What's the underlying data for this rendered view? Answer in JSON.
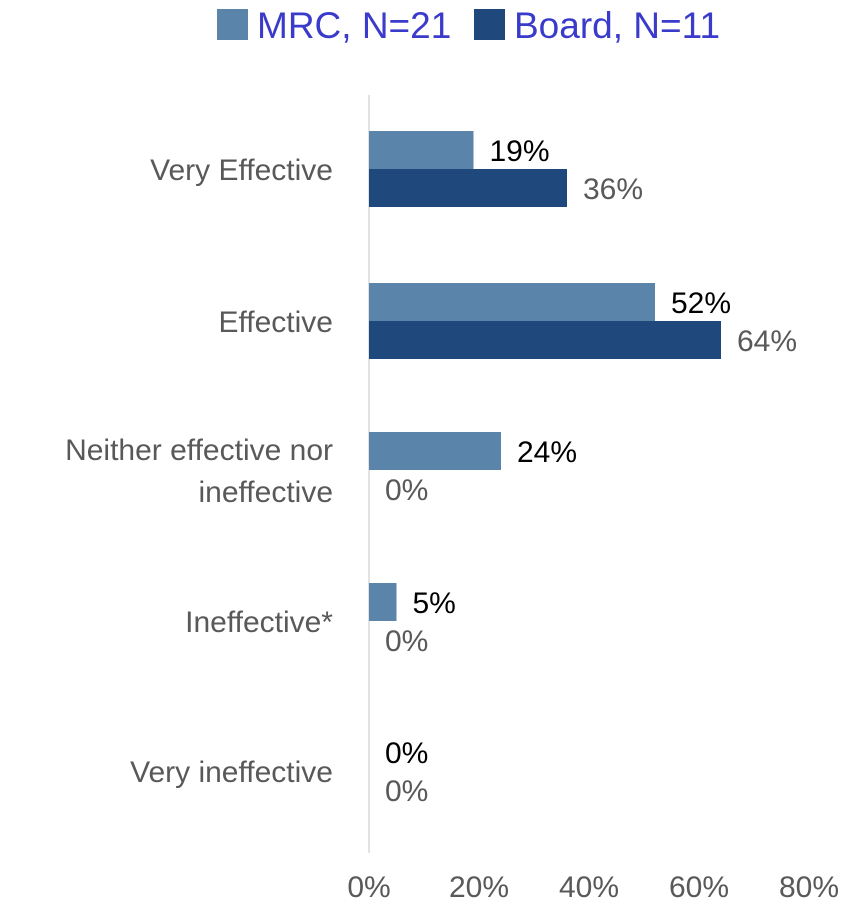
{
  "chart_data": {
    "type": "bar",
    "orientation": "horizontal",
    "categories": [
      "Very Effective",
      "Effective",
      "Neither effective nor ineffective",
      "Ineffective*",
      "Very ineffective"
    ],
    "category_lines": [
      [
        "Very Effective"
      ],
      [
        "Effective"
      ],
      [
        "Neither effective nor",
        "ineffective"
      ],
      [
        "Ineffective*"
      ],
      [
        "Very ineffective"
      ]
    ],
    "series": [
      {
        "name": "MRC, N=21",
        "values": [
          19,
          52,
          24,
          5,
          0
        ],
        "labels": [
          "19%",
          "52%",
          "24%",
          "5%",
          "0%"
        ],
        "color": "#5B84AA",
        "label_color": "#000000"
      },
      {
        "name": "Board, N=11",
        "values": [
          36,
          64,
          0,
          0,
          0
        ],
        "labels": [
          "36%",
          "64%",
          "0%",
          "0%",
          "0%"
        ],
        "color": "#1F497D",
        "label_color": "#595959"
      }
    ],
    "x_ticks": [
      "0%",
      "20%",
      "40%",
      "60%",
      "80%"
    ],
    "xlim": [
      0,
      80
    ],
    "legend_position": "top",
    "legend_text_color": "#3A3ACB",
    "grid": false,
    "title": "",
    "xlabel": "",
    "ylabel": ""
  }
}
